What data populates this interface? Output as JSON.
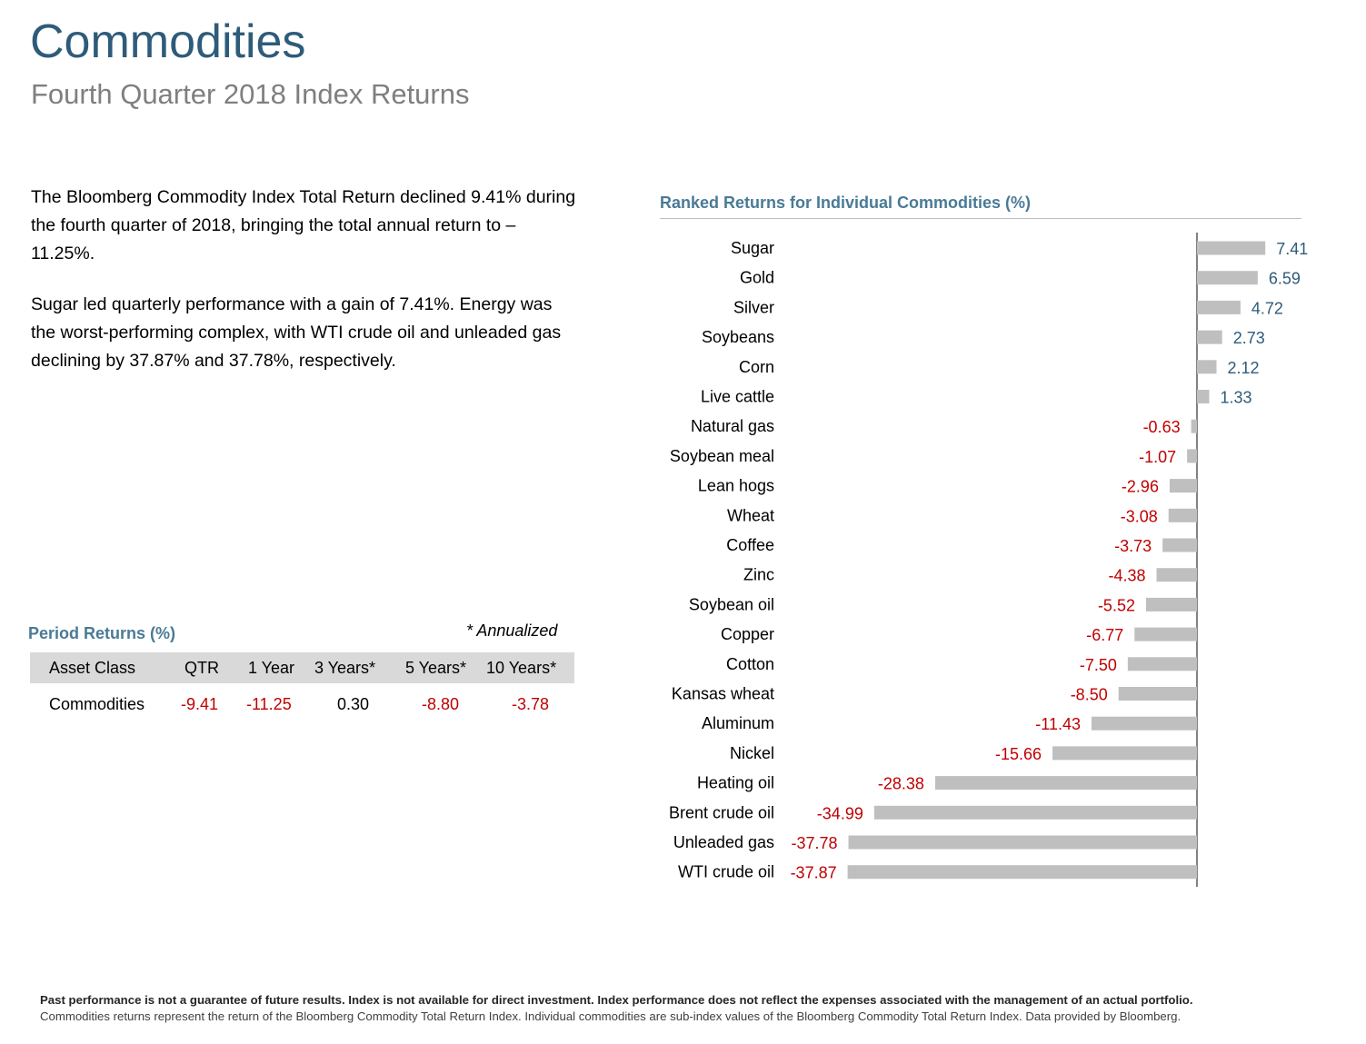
{
  "header": {
    "title": "Commodities",
    "subtitle": "Fourth Quarter 2018 Index Returns"
  },
  "summary": {
    "paragraph1": "The Bloomberg Commodity Index Total Return declined 9.41% during the fourth quarter of 2018, bringing the total annual return to –11.25%.",
    "paragraph2": "Sugar led quarterly performance with a gain of 7.41%. Energy was the worst-performing complex, with WTI crude oil and unleaded gas declining by 37.87% and 37.78%, respectively."
  },
  "period_returns": {
    "title": "Period Returns (%)",
    "note": "* Annualized",
    "columns": [
      "Asset Class",
      "QTR",
      "1 Year",
      "3 Years*",
      "5 Years*",
      "10 Years*"
    ],
    "rows": [
      {
        "asset": "Commodities",
        "values": [
          "-9.41",
          "-11.25",
          "0.30",
          "-8.80",
          "-3.78"
        ]
      }
    ]
  },
  "chart_data": {
    "type": "bar",
    "orientation": "horizontal",
    "title": "Ranked Returns for Individual Commodities (%)",
    "categories": [
      "Sugar",
      "Gold",
      "Silver",
      "Soybeans",
      "Corn",
      "Live cattle",
      "Natural gas",
      "Soybean meal",
      "Lean hogs",
      "Wheat",
      "Coffee",
      "Zinc",
      "Soybean oil",
      "Copper",
      "Cotton",
      "Kansas wheat",
      "Aluminum",
      "Nickel",
      "Heating oil",
      "Brent crude oil",
      "Unleaded gas",
      "WTI crude oil"
    ],
    "values": [
      7.41,
      6.59,
      4.72,
      2.73,
      2.12,
      1.33,
      -0.63,
      -1.07,
      -2.96,
      -3.08,
      -3.73,
      -4.38,
      -5.52,
      -6.77,
      -7.5,
      -8.5,
      -11.43,
      -15.66,
      -28.38,
      -34.99,
      -37.78,
      -37.87
    ],
    "labels": [
      "7.41",
      "6.59",
      "4.72",
      "2.73",
      "2.12",
      "1.33",
      "-0.63",
      "-1.07",
      "-2.96",
      "-3.08",
      "-3.73",
      "-4.38",
      "-5.52",
      "-6.77",
      "-7.50",
      "-8.50",
      "-11.43",
      "-15.66",
      "-28.38",
      "-34.99",
      "-37.78",
      "-37.87"
    ],
    "colors": {
      "bar": "#bfbfbf",
      "positive_label": "#2f5b7a",
      "negative_label": "#c00000",
      "axis": "#595959"
    }
  },
  "footer": {
    "line1": "Past performance is not a guarantee of future results. Index is not available for direct investment. Index performance does not reflect the expenses associated with the management of an actual portfolio.",
    "line2": "Commodities returns represent the return of the Bloomberg Commodity Total Return Index. Individual commodities are sub-index values of the Bloomberg Commodity Total Return Index. Data provided by Bloomberg."
  }
}
